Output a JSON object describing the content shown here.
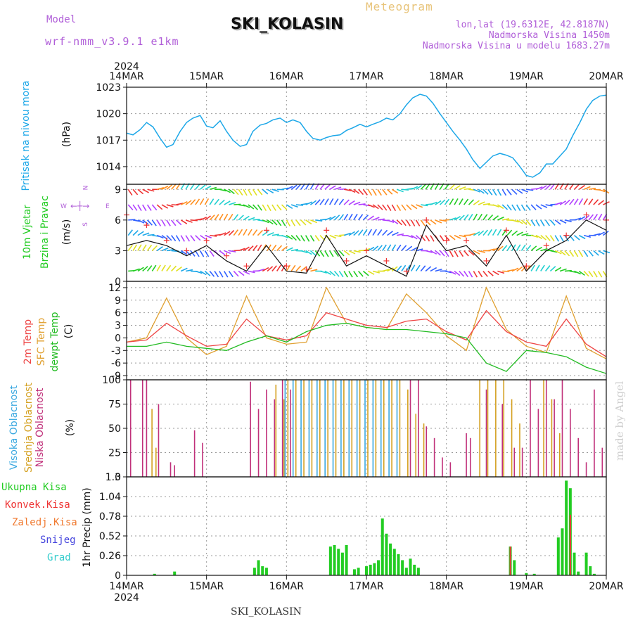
{
  "header": {
    "model_label": "Model",
    "model_value": "wrf-nmm_v3.9.1  e1km",
    "station_title": "SKI_KOLASIN",
    "meteogram_label": "Meteogram",
    "lonlat": "lon,lat (19.6312E, 42.8187N)",
    "elevation": "Nadmorska Visina 1450m",
    "model_elevation": "Nadmorska Visina u modelu 1683.27m"
  },
  "footer": {
    "station": "SKI_KOLASIN",
    "credit": "made by Angel"
  },
  "time_axis": {
    "year": "2024",
    "labels": [
      "14MAR",
      "15MAR",
      "16MAR",
      "17MAR",
      "18MAR",
      "19MAR",
      "20MAR"
    ]
  },
  "colors": {
    "pressure": "#1ca7e8",
    "wind_label": "#22cc22",
    "wind_speed_line": "#111111",
    "wind_gust_marker": "#ee3333",
    "temp_2m": "#ee4444",
    "temp_sfc": "#e0a030",
    "temp_dew": "#22bb22",
    "cloud_high": "#3aa8e0",
    "cloud_mid": "#d4a020",
    "cloud_low": "#c0307a",
    "precip_total": "#22cc22",
    "precip_conv": "#ee3333",
    "precip_frozen": "#f07a30",
    "precip_snow": "#4444dd",
    "precip_grad": "#33cccc"
  },
  "panels": {
    "pressure": {
      "label": "Pritisak na nivou mora",
      "unit": "(hPa)"
    },
    "wind": {
      "label_1": "10m Vjetar",
      "label_2": "Brzina i Pravac",
      "unit": "(m/s)",
      "compass": {
        "n": "N",
        "e": "E",
        "w": "W",
        "s": "S"
      }
    },
    "temp": {
      "label_1": "2m Temp",
      "label_2": "SFC Temp",
      "label_3": "dewpt Temp",
      "unit": "(C)"
    },
    "cloud": {
      "label_1": "Visoka Oblacnost",
      "label_2": "Srednja Oblacnost",
      "label_3": "Niska Oblacnost",
      "unit": "(%)"
    },
    "precip": {
      "unit": "1hr Precip (mm)",
      "legend": [
        "Ukupna Kisa",
        "Konvek.Kisa",
        "Zaledj.Kisa",
        "Snijeg",
        "Grad"
      ]
    }
  },
  "chart_data": [
    {
      "type": "line",
      "name": "pressure",
      "ylim": [
        1012,
        1023
      ],
      "yticks": [
        1014,
        1017,
        1020,
        1023
      ],
      "x_days": [
        0,
        0.08,
        0.17,
        0.25,
        0.33,
        0.42,
        0.5,
        0.58,
        0.67,
        0.75,
        0.83,
        0.92,
        1,
        1.08,
        1.17,
        1.25,
        1.33,
        1.42,
        1.5,
        1.58,
        1.67,
        1.75,
        1.83,
        1.92,
        2,
        2.08,
        2.17,
        2.25,
        2.33,
        2.42,
        2.5,
        2.58,
        2.67,
        2.75,
        2.83,
        2.92,
        3,
        3.08,
        3.17,
        3.25,
        3.33,
        3.42,
        3.5,
        3.58,
        3.67,
        3.75,
        3.83,
        3.92,
        4,
        4.08,
        4.17,
        4.25,
        4.33,
        4.42,
        4.5,
        4.58,
        4.67,
        4.75,
        4.83,
        4.92,
        5,
        5.08,
        5.17,
        5.25,
        5.33,
        5.42,
        5.5,
        5.58,
        5.67,
        5.75,
        5.83,
        5.92,
        6
      ],
      "values": [
        1017.8,
        1017.6,
        1018.2,
        1019.0,
        1018.5,
        1017.2,
        1016.2,
        1016.5,
        1018.0,
        1019.0,
        1019.5,
        1019.8,
        1018.6,
        1018.4,
        1019.2,
        1018.0,
        1017.0,
        1016.3,
        1016.5,
        1018.0,
        1018.7,
        1018.9,
        1019.3,
        1019.5,
        1019.0,
        1019.3,
        1019.0,
        1018.0,
        1017.2,
        1017.0,
        1017.3,
        1017.5,
        1017.6,
        1018.1,
        1018.4,
        1018.8,
        1018.5,
        1018.8,
        1019.1,
        1019.5,
        1019.3,
        1020.0,
        1021.0,
        1021.8,
        1022.2,
        1022.0,
        1021.2,
        1020.0,
        1019.0,
        1018.0,
        1017.0,
        1016.0,
        1014.8,
        1013.8,
        1014.5,
        1015.2,
        1015.5,
        1015.3,
        1015.0,
        1014.0,
        1013.0,
        1012.8,
        1013.3,
        1014.3,
        1014.3,
        1015.2,
        1016.0,
        1017.5,
        1019.0,
        1020.5,
        1021.5,
        1022.0,
        1022.1
      ]
    },
    {
      "type": "line",
      "name": "wind",
      "ylim": [
        0,
        9.5
      ],
      "yticks": [
        0,
        3,
        6,
        9
      ],
      "x_days": [
        0,
        0.25,
        0.5,
        0.75,
        1,
        1.25,
        1.5,
        1.75,
        2,
        2.25,
        2.5,
        2.75,
        3,
        3.25,
        3.5,
        3.75,
        4,
        4.25,
        4.5,
        4.75,
        5,
        5.25,
        5.5,
        5.75,
        6
      ],
      "speed": [
        3.5,
        4.0,
        3.5,
        2.5,
        3.5,
        2.0,
        1.0,
        3.5,
        1.0,
        0.8,
        4.5,
        1.5,
        2.5,
        1.5,
        0.5,
        5.5,
        3.0,
        3.5,
        1.5,
        4.5,
        1.0,
        3.0,
        4.0,
        6.0,
        5.0
      ],
      "gust": [
        6.5,
        5.5,
        4.0,
        3.0,
        4.0,
        2.5,
        1.5,
        5.0,
        1.5,
        1.2,
        5.0,
        2.0,
        3.0,
        2.0,
        1.0,
        6.0,
        4.0,
        4.0,
        2.0,
        5.0,
        1.5,
        3.5,
        4.5,
        6.5,
        6.0
      ]
    },
    {
      "type": "line",
      "name": "temperature",
      "ylim": [
        -10,
        13.5
      ],
      "yticks": [
        -9,
        -6,
        -3,
        0,
        3,
        6,
        9,
        12
      ],
      "x_days": [
        0,
        0.25,
        0.5,
        0.75,
        1,
        1.25,
        1.5,
        1.75,
        2,
        2.25,
        2.5,
        2.75,
        3,
        3.25,
        3.5,
        3.75,
        4,
        4.25,
        4.5,
        4.75,
        5,
        5.25,
        5.5,
        5.75,
        6
      ],
      "t2m": [
        -1.0,
        -0.5,
        3.5,
        0.5,
        -2.0,
        -1.5,
        4.5,
        0.5,
        -0.5,
        0.5,
        6.0,
        4.5,
        3.0,
        2.5,
        4.0,
        4.5,
        1.5,
        -0.5,
        6.5,
        1.5,
        -1.0,
        -2.0,
        4.5,
        -1.5,
        -4.5
      ],
      "tsfc": [
        -1.0,
        0.0,
        9.5,
        0.0,
        -4.0,
        -2.0,
        10.0,
        0.0,
        -1.5,
        -1.0,
        12.0,
        3.5,
        2.5,
        2.0,
        10.5,
        6.0,
        0.5,
        -3.0,
        12.0,
        2.0,
        -2.0,
        -3.5,
        10.0,
        -2.5,
        -5.0
      ],
      "tdew": [
        -2.0,
        -2.0,
        -1.0,
        -2.0,
        -2.5,
        -3.0,
        -1.0,
        0.5,
        -1.0,
        1.5,
        3.0,
        3.5,
        2.5,
        2.0,
        2.0,
        1.5,
        1.0,
        0.0,
        -6.0,
        -8.0,
        -3.0,
        -3.5,
        -4.5,
        -7.0,
        -8.5
      ]
    },
    {
      "type": "bar",
      "name": "cloud",
      "ylim": [
        0,
        100
      ],
      "yticks": [
        0,
        25,
        50,
        75,
        100
      ],
      "high_x": [
        2.0,
        2.1,
        2.2,
        2.3,
        2.4,
        2.5,
        2.6,
        2.7,
        2.8,
        2.9,
        3.0,
        3.1,
        3.2,
        3.3,
        3.4
      ],
      "high_values": [
        100,
        100,
        100,
        100,
        100,
        100,
        100,
        100,
        100,
        100,
        100,
        100,
        100,
        100,
        100
      ],
      "mid_x": [
        0.3,
        0.35,
        1.85,
        1.95,
        2.0,
        2.1,
        2.2,
        2.3,
        2.4,
        2.5,
        2.6,
        2.7,
        2.8,
        2.9,
        3.0,
        3.1,
        3.2,
        3.3,
        3.4,
        3.5,
        3.6,
        3.7,
        4.4,
        4.5,
        4.6,
        4.7,
        4.8,
        4.9,
        5.2,
        5.3,
        5.4
      ],
      "mid_values": [
        70,
        30,
        95,
        80,
        100,
        100,
        100,
        100,
        100,
        100,
        100,
        100,
        100,
        100,
        100,
        100,
        100,
        100,
        100,
        90,
        65,
        55,
        100,
        100,
        100,
        100,
        80,
        55,
        100,
        80,
        45
      ],
      "low_x": [
        0.05,
        0.2,
        0.25,
        0.4,
        0.55,
        0.6,
        0.85,
        0.95,
        1.55,
        1.65,
        1.75,
        1.85,
        1.95,
        2.05,
        3.55,
        3.65,
        3.75,
        3.85,
        3.95,
        4.05,
        4.25,
        4.3,
        4.5,
        4.7,
        4.85,
        4.95,
        5.05,
        5.15,
        5.25,
        5.35,
        5.45,
        5.55,
        5.65,
        5.75,
        5.85,
        5.95
      ],
      "low_values": [
        100,
        100,
        100,
        75,
        15,
        12,
        48,
        35,
        98,
        70,
        90,
        80,
        100,
        90,
        100,
        100,
        52,
        40,
        20,
        15,
        45,
        40,
        90,
        75,
        30,
        30,
        100,
        70,
        100,
        80,
        100,
        70,
        40,
        15,
        90,
        30
      ]
    },
    {
      "type": "bar",
      "name": "precipitation",
      "ylim": [
        0,
        1.3
      ],
      "yticks": [
        0,
        0.26,
        0.52,
        0.78,
        1.04,
        1.3
      ],
      "total_x": [
        0.35,
        0.6,
        1.6,
        1.65,
        1.7,
        1.75,
        2.55,
        2.6,
        2.65,
        2.7,
        2.75,
        2.85,
        2.9,
        3.0,
        3.05,
        3.1,
        3.15,
        3.2,
        3.25,
        3.3,
        3.35,
        3.4,
        3.45,
        3.5,
        3.55,
        3.6,
        3.65,
        4.8,
        4.85,
        5.0,
        5.1,
        5.4,
        5.45,
        5.5,
        5.55,
        5.6,
        5.65,
        5.75,
        5.8,
        5.85
      ],
      "total_values": [
        0.02,
        0.05,
        0.1,
        0.2,
        0.12,
        0.1,
        0.38,
        0.4,
        0.35,
        0.3,
        0.4,
        0.08,
        0.1,
        0.12,
        0.14,
        0.16,
        0.2,
        0.75,
        0.55,
        0.42,
        0.35,
        0.28,
        0.2,
        0.1,
        0.22,
        0.14,
        0.1,
        0.38,
        0.2,
        0.03,
        0.02,
        0.5,
        0.62,
        1.25,
        1.15,
        0.3,
        0.05,
        0.3,
        0.12,
        0.02
      ],
      "conv_x": [
        4.8,
        5.55
      ],
      "conv_values": [
        0.38,
        0.8
      ]
    }
  ]
}
